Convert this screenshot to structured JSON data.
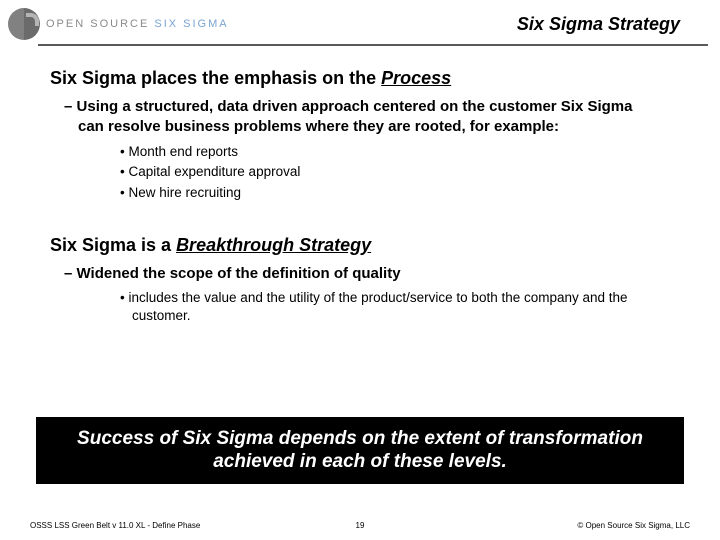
{
  "header": {
    "brand_open": "OPEN SOURCE",
    "brand_accent": "SIX SIGMA",
    "title": "Six Sigma Strategy"
  },
  "section1": {
    "heading_pre": "Six Sigma places the emphasis on the ",
    "heading_word": "Process",
    "dash": "Using a structured, data driven approach centered on the customer Six Sigma can resolve business problems where they are rooted, for example:",
    "bullets": {
      "0": "Month end reports",
      "1": "Capital expenditure approval",
      "2": "New hire recruiting"
    }
  },
  "section2": {
    "heading_pre": "Six Sigma is a ",
    "heading_word": "Breakthrough Strategy",
    "dash": "Widened the scope of the definition of quality",
    "bullets": {
      "0": "includes the value and the utility of the product/service to both the company and the customer."
    }
  },
  "callout": "Success of Six Sigma depends on the extent of transformation achieved in each of these levels.",
  "footer": {
    "left": "OSSS LSS Green Belt v 11.0 XL - Define Phase",
    "page": "19",
    "right": "© Open Source Six Sigma, LLC"
  },
  "colors": {
    "divider": "#5a5a5a",
    "callout_bg": "#000000",
    "callout_fg": "#ffffff",
    "brand_gray": "#8a8a8a",
    "brand_accent": "#7aa3d0"
  }
}
